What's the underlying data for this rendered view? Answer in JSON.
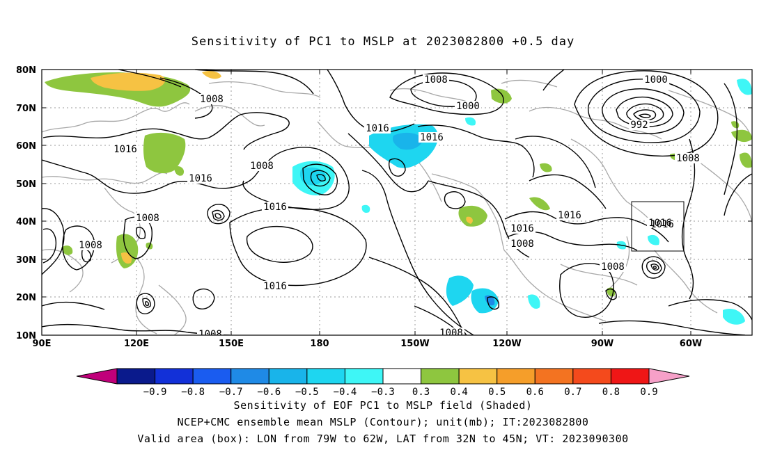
{
  "title": "Sensitivity of PC1 to MSLP at 2023082800 +0.5 day",
  "axes": {
    "lat_labels": [
      "80N",
      "70N",
      "60N",
      "50N",
      "40N",
      "30N",
      "20N",
      "10N"
    ],
    "lon_labels": [
      "90E",
      "120E",
      "150E",
      "180",
      "150W",
      "120W",
      "90W",
      "60W"
    ]
  },
  "contour_labels": [
    "1008",
    "1008",
    "1000",
    "1000",
    "1008",
    "1016",
    "1016",
    "1008",
    "1016",
    "992",
    "1008",
    "1016",
    "1016",
    "1008",
    "1016",
    "1016",
    "1016",
    "1008",
    "1016",
    "1008",
    "1008",
    "1008"
  ],
  "box_label": "1016",
  "colorbar": {
    "ticks": [
      "−0.9",
      "−0.8",
      "−0.7",
      "−0.6",
      "−0.5",
      "−0.4",
      "−0.3",
      "0.3",
      "0.4",
      "0.5",
      "0.6",
      "0.7",
      "0.8",
      "0.9"
    ],
    "colors": [
      "#c0007a",
      "#0a1a8c",
      "#1230d8",
      "#1a5cf0",
      "#1f8ae6",
      "#19b4ea",
      "#1ed6f0",
      "#3ef6f6",
      "#ffffff",
      "#8ec63f",
      "#f6c243",
      "#f59e2a",
      "#f37321",
      "#f44a1c",
      "#ef1616",
      "#f6a0c8"
    ]
  },
  "footer": {
    "line1": "Sensitivity of EOF PC1 to MSLP field (Shaded)",
    "line2": "NCEP+CMC ensemble mean MSLP (Contour); unit(mb); IT:2023082800",
    "line3": "Valid area (box): LON from 79W to 62W, LAT from 32N to 45N; VT: 2023090300"
  }
}
